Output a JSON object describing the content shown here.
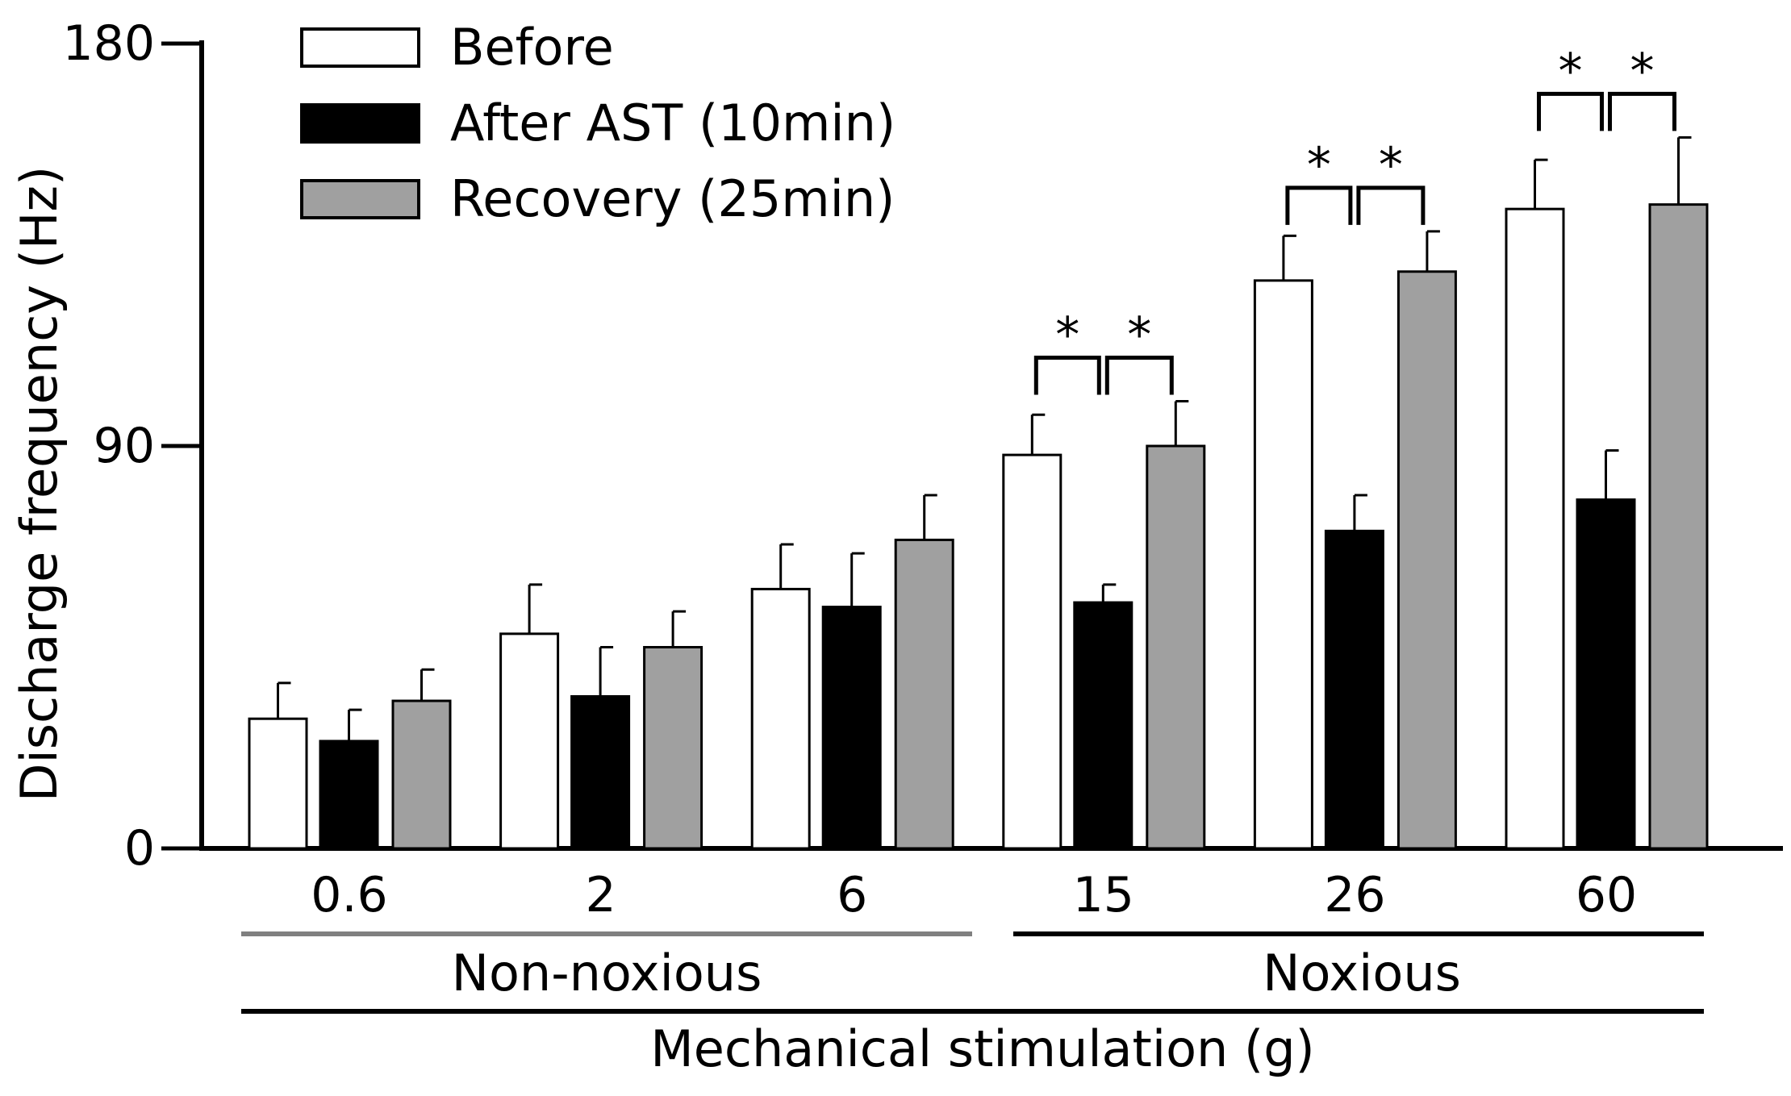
{
  "chart_data": {
    "type": "bar",
    "title": "",
    "xlabel": "Mechanical stimulation (g)",
    "ylabel": "Discharge frequency (Hz)",
    "ylim": [
      0,
      180
    ],
    "yticks": [
      "0",
      "90",
      "180"
    ],
    "categories": [
      "0.6",
      "2",
      "6",
      "15",
      "26",
      "60"
    ],
    "category_groups": [
      {
        "label": "Non-noxious",
        "categories": [
          "0.6",
          "2",
          "6"
        ],
        "line_color": "#808080"
      },
      {
        "label": "Noxious",
        "categories": [
          "15",
          "26",
          "60"
        ],
        "line_color": "#000000"
      }
    ],
    "legend_position": "top-left",
    "grid": false,
    "series": [
      {
        "name": "Before",
        "color": "#ffffff",
        "values": [
          29,
          48,
          58,
          88,
          127,
          143
        ],
        "error": [
          8,
          11,
          10,
          9,
          10,
          11
        ]
      },
      {
        "name": "After AST (10min)",
        "color": "#000000",
        "values": [
          24,
          34,
          54,
          55,
          71,
          78
        ],
        "error": [
          7,
          11,
          12,
          4,
          8,
          11
        ]
      },
      {
        "name": "Recovery (25min)",
        "color": "#a0a0a0",
        "values": [
          33,
          45,
          69,
          90,
          129,
          144
        ],
        "error": [
          7,
          8,
          10,
          10,
          9,
          15
        ]
      }
    ],
    "significance": [
      {
        "category": "15",
        "pairs": [
          [
            "Before",
            "After AST (10min)"
          ],
          [
            "After AST (10min)",
            "Recovery (25min)"
          ]
        ],
        "label": "*"
      },
      {
        "category": "26",
        "pairs": [
          [
            "Before",
            "After AST (10min)"
          ],
          [
            "After AST (10min)",
            "Recovery (25min)"
          ]
        ],
        "label": "*"
      },
      {
        "category": "60",
        "pairs": [
          [
            "Before",
            "After AST (10min)"
          ],
          [
            "After AST (10min)",
            "Recovery (25min)"
          ]
        ],
        "label": "*"
      }
    ]
  }
}
